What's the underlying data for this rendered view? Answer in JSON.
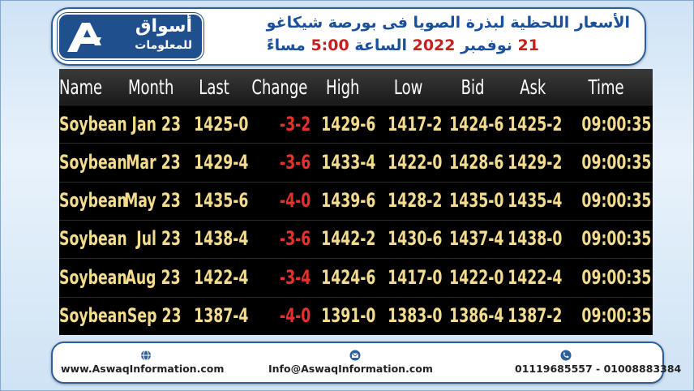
{
  "header": {
    "logo": {
      "line1": "أسواق",
      "line2": "للمعلومات"
    },
    "title": "الأسعار اللحظية لبذرة الصويا فى بورصة شيكاغو",
    "subtitle": {
      "day": "21",
      "month": "نوفمبر",
      "year": "2022",
      "time_word": "الساعة",
      "time": "5:00",
      "period": "مساءً"
    }
  },
  "table": {
    "columns": [
      "Name",
      "Month",
      "Last",
      "Change",
      "High",
      "Low",
      "Bid",
      "Ask",
      "Time"
    ],
    "rows": [
      [
        "Soybean",
        "Jan 23",
        "1425-0",
        "-3-2",
        "1429-6",
        "1417-2",
        "1424-6",
        "1425-2",
        "09:00:35"
      ],
      [
        "Soybean",
        "Mar 23",
        "1429-4",
        "-3-6",
        "1433-4",
        "1422-0",
        "1428-6",
        "1429-2",
        "09:00:35"
      ],
      [
        "Soybean",
        "May 23",
        "1435-6",
        "-4-0",
        "1439-6",
        "1428-2",
        "1435-0",
        "1435-4",
        "09:00:35"
      ],
      [
        "Soybean",
        "Jul 23",
        "1438-4",
        "-3-6",
        "1442-2",
        "1430-6",
        "1437-4",
        "1438-0",
        "09:00:35"
      ],
      [
        "Soybean",
        "Aug 23",
        "1422-4",
        "-3-4",
        "1424-6",
        "1417-0",
        "1422-0",
        "1422-4",
        "09:00:35"
      ],
      [
        "Soybean",
        "Sep 23",
        "1387-4",
        "-4-0",
        "1391-0",
        "1383-0",
        "1386-4",
        "1387-2",
        "09:00:35"
      ]
    ]
  },
  "footer": {
    "website": "www.AswaqInformation.com",
    "email": "Info@AswaqInformation.com",
    "phones": "01119685557 - 01008883384"
  }
}
